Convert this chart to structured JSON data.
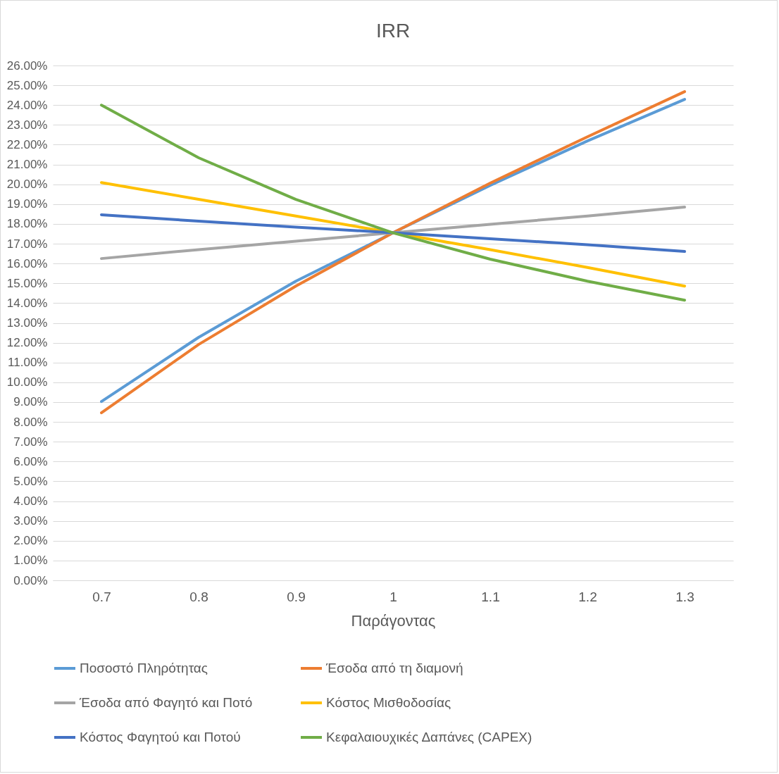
{
  "chart_data": {
    "type": "line",
    "title": "IRR",
    "xlabel": "Παράγοντας",
    "categories": [
      "0.7",
      "0.8",
      "0.9",
      "1",
      "1.1",
      "1.2",
      "1.3"
    ],
    "series": [
      {
        "name": "Ποσοστό Πληρότητας",
        "color": "#5b9bd5",
        "values": [
          9.03,
          12.27,
          15.11,
          17.55,
          19.95,
          22.19,
          24.29
        ]
      },
      {
        "name": "Έσοδα από τη διαμονή",
        "color": "#ed7d31",
        "values": [
          8.46,
          11.91,
          14.86,
          17.55,
          20.06,
          22.4,
          24.68
        ]
      },
      {
        "name": "Έσοδα από Φαγητό και Ποτό",
        "color": "#a5a5a5",
        "values": [
          16.25,
          16.7,
          17.13,
          17.55,
          17.98,
          18.4,
          18.85
        ]
      },
      {
        "name": "Κόστος Μισθοδοσίας",
        "color": "#ffc000",
        "values": [
          20.09,
          19.24,
          18.4,
          17.55,
          16.7,
          15.8,
          14.86
        ]
      },
      {
        "name": "Κόστος Φαγητού και Ποτού",
        "color": "#4472c4",
        "values": [
          18.46,
          18.14,
          17.84,
          17.55,
          17.25,
          16.95,
          16.61
        ]
      },
      {
        "name": "Κεφαλαιουχικές Δαπάνες (CAPEX)",
        "color": "#70ad47",
        "values": [
          24.0,
          21.34,
          19.24,
          17.55,
          16.22,
          15.11,
          14.15
        ]
      }
    ],
    "ylim": [
      0,
      26
    ],
    "yticks": [
      {
        "value": 0,
        "label": "0.00%"
      },
      {
        "value": 1,
        "label": "1.00%"
      },
      {
        "value": 2,
        "label": "2.00%"
      },
      {
        "value": 3,
        "label": "3.00%"
      },
      {
        "value": 4,
        "label": "4.00%"
      },
      {
        "value": 5,
        "label": "5.00%"
      },
      {
        "value": 6,
        "label": "6.00%"
      },
      {
        "value": 7,
        "label": "7.00%"
      },
      {
        "value": 8,
        "label": "8.00%"
      },
      {
        "value": 9,
        "label": "9.00%"
      },
      {
        "value": 10,
        "label": "10.00%"
      },
      {
        "value": 11,
        "label": "11.00%"
      },
      {
        "value": 12,
        "label": "12.00%"
      },
      {
        "value": 13,
        "label": "13.00%"
      },
      {
        "value": 14,
        "label": "14.00%"
      },
      {
        "value": 15,
        "label": "15.00%"
      },
      {
        "value": 16,
        "label": "16.00%"
      },
      {
        "value": 17,
        "label": "17.00%"
      },
      {
        "value": 18,
        "label": "18.00%"
      },
      {
        "value": 19,
        "label": "19.00%"
      },
      {
        "value": 20,
        "label": "20.00%"
      },
      {
        "value": 21,
        "label": "21.00%"
      },
      {
        "value": 22,
        "label": "22.00%"
      },
      {
        "value": 23,
        "label": "23.00%"
      },
      {
        "value": 24,
        "label": "24.00%"
      },
      {
        "value": 25,
        "label": "25.00%"
      },
      {
        "value": 26,
        "label": "26.00%"
      }
    ],
    "grid": "y",
    "legend": "bottom",
    "marker": "none",
    "line_style": "solid"
  }
}
